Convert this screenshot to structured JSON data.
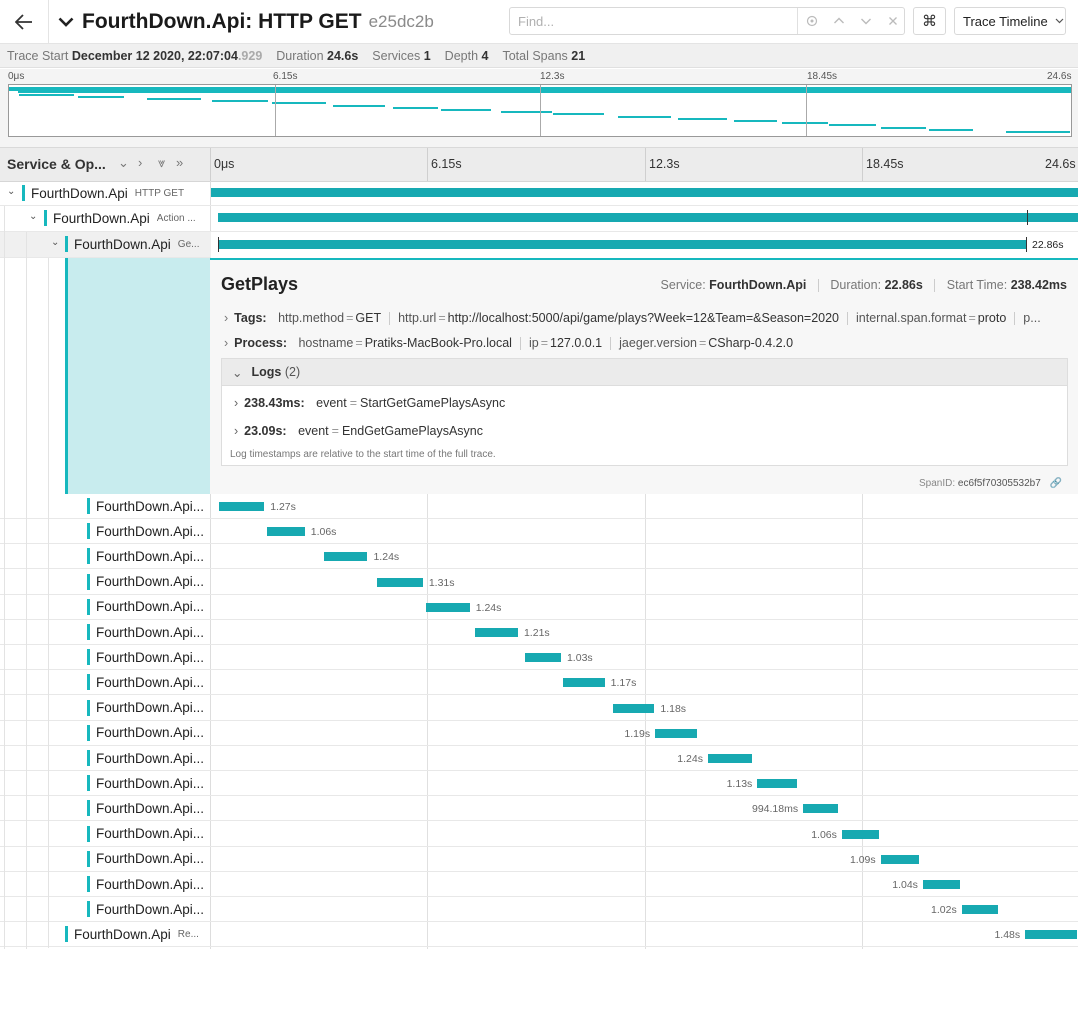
{
  "header": {
    "back_icon": "arrow-left-icon",
    "title": "FourthDown.Api: HTTP GET",
    "trace_id": "e25dc2b",
    "find_placeholder": "Find...",
    "keyboard_label": "⌘",
    "view_label": "Trace Timeline"
  },
  "summary": {
    "trace_start_label": "Trace Start",
    "trace_start_main": "December 12 2020, 22:07:04",
    "trace_start_ms": ".929",
    "duration_label": "Duration",
    "duration": "24.6s",
    "services_label": "Services",
    "services": "1",
    "depth_label": "Depth",
    "depth": "4",
    "spans_label": "Total Spans",
    "spans": "21"
  },
  "ticks": [
    "0μs",
    "6.15s",
    "12.3s",
    "18.45s",
    "24.6s"
  ],
  "timeline_header": {
    "label": "Service & Op..."
  },
  "top_rows": [
    {
      "service": "FourthDown.Api",
      "op": "HTTP GET",
      "start": 0,
      "dur": 24.6
    },
    {
      "service": "FourthDown.Api",
      "op": "Action ...",
      "start": 0.2,
      "dur": 24.4
    },
    {
      "service": "FourthDown.Api",
      "op": "Ge...",
      "start": 0.2,
      "dur": 22.86,
      "dur_label": "22.86s"
    }
  ],
  "detail": {
    "title": "GetPlays",
    "service_label": "Service:",
    "service": "FourthDown.Api",
    "duration_label": "Duration:",
    "duration": "22.86s",
    "start_label": "Start Time:",
    "start": "238.42ms",
    "tags_label": "Tags:",
    "tags": [
      {
        "k": "http.method",
        "v": "GET"
      },
      {
        "k": "http.url",
        "v": "http://localhost:5000/api/game/plays?Week=12&Team=&Season=2020"
      },
      {
        "k": "internal.span.format",
        "v": "proto"
      },
      {
        "k": "p...",
        "v": ""
      }
    ],
    "process_label": "Process:",
    "process": [
      {
        "k": "hostname",
        "v": "Pratiks-MacBook-Pro.local"
      },
      {
        "k": "ip",
        "v": "127.0.0.1"
      },
      {
        "k": "jaeger.version",
        "v": "CSharp-0.4.2.0"
      }
    ],
    "logs_label": "Logs",
    "logs_count": "(2)",
    "logs": [
      {
        "time": "238.43ms:",
        "k": "event",
        "v": "StartGetGamePlaysAsync"
      },
      {
        "time": "23.09s:",
        "k": "event",
        "v": "EndGetGamePlaysAsync"
      }
    ],
    "logs_note": "Log timestamps are relative to the start time of the full trace.",
    "span_id_label": "SpanID:",
    "span_id": "ec6f5f70305532b7"
  },
  "child_rows": [
    {
      "name": "FourthDown.Api...",
      "start": 0.24,
      "dur": 1.27,
      "label": "1.27s",
      "side": "right"
    },
    {
      "name": "FourthDown.Api...",
      "start": 1.6,
      "dur": 1.06,
      "label": "1.06s",
      "side": "right"
    },
    {
      "name": "FourthDown.Api...",
      "start": 3.2,
      "dur": 1.24,
      "label": "1.24s",
      "side": "right"
    },
    {
      "name": "FourthDown.Api...",
      "start": 4.7,
      "dur": 1.31,
      "label": "1.31s",
      "side": "right"
    },
    {
      "name": "FourthDown.Api...",
      "start": 6.1,
      "dur": 1.24,
      "label": "1.24s",
      "side": "right"
    },
    {
      "name": "FourthDown.Api...",
      "start": 7.5,
      "dur": 1.21,
      "label": "1.21s",
      "side": "right"
    },
    {
      "name": "FourthDown.Api...",
      "start": 8.9,
      "dur": 1.03,
      "label": "1.03s",
      "side": "right"
    },
    {
      "name": "FourthDown.Api...",
      "start": 10.0,
      "dur": 1.17,
      "label": "1.17s",
      "side": "right"
    },
    {
      "name": "FourthDown.Api...",
      "start": 11.4,
      "dur": 1.18,
      "label": "1.18s",
      "side": "right"
    },
    {
      "name": "FourthDown.Api...",
      "start": 12.6,
      "dur": 1.19,
      "label": "1.19s",
      "side": "left"
    },
    {
      "name": "FourthDown.Api...",
      "start": 14.1,
      "dur": 1.24,
      "label": "1.24s",
      "side": "left"
    },
    {
      "name": "FourthDown.Api...",
      "start": 15.5,
      "dur": 1.13,
      "label": "1.13s",
      "side": "left"
    },
    {
      "name": "FourthDown.Api...",
      "start": 16.8,
      "dur": 0.99418,
      "label": "994.18ms",
      "side": "left"
    },
    {
      "name": "FourthDown.Api...",
      "start": 17.9,
      "dur": 1.06,
      "label": "1.06s",
      "side": "left"
    },
    {
      "name": "FourthDown.Api...",
      "start": 19.0,
      "dur": 1.09,
      "label": "1.09s",
      "side": "left"
    },
    {
      "name": "FourthDown.Api...",
      "start": 20.2,
      "dur": 1.04,
      "label": "1.04s",
      "side": "left"
    },
    {
      "name": "FourthDown.Api...",
      "start": 21.3,
      "dur": 1.02,
      "label": "1.02s",
      "side": "left"
    }
  ],
  "last_row": {
    "service": "FourthDown.Api",
    "op": "Re...",
    "start": 23.1,
    "dur": 1.48,
    "label": "1.48s",
    "side": "left"
  },
  "colors": {
    "accent": "#17b8be",
    "bar": "#17a9b1"
  }
}
